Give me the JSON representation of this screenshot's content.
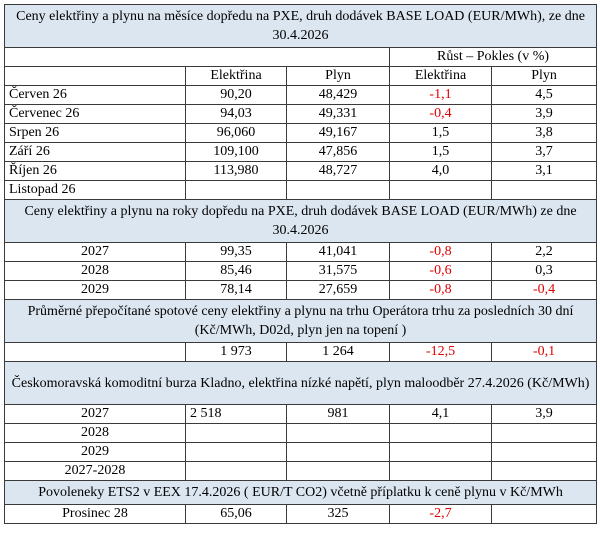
{
  "section1": {
    "title": "Ceny elektřiny a plynu na měsíce dopředu na PXE, druh dodávek BASE LOAD (EUR/MWh), ze dne 30.4.2026",
    "growth_header": "Růst – Pokles (v %)",
    "col_elektrina": "Elektřina",
    "col_plyn": "Plyn",
    "col_growth_elektrina": "Elektřina",
    "col_growth_plyn": "Plyn",
    "rows": [
      {
        "label": "Červen 26",
        "elektrina": "90,20",
        "plyn": "48,429",
        "ge": "-1,1",
        "gp": "4,5"
      },
      {
        "label": "Červenec 26",
        "elektrina": "94,03",
        "plyn": "49,331",
        "ge": "-0,4",
        "gp": "3,9"
      },
      {
        "label": "Srpen 26",
        "elektrina": "96,060",
        "plyn": "49,167",
        "ge": "1,5",
        "gp": "3,8"
      },
      {
        "label": "Září 26",
        "elektrina": "109,100",
        "plyn": "47,856",
        "ge": "1,5",
        "gp": "3,7"
      },
      {
        "label": "Říjen 26",
        "elektrina": "113,980",
        "plyn": "48,727",
        "ge": "4,0",
        "gp": "3,1"
      },
      {
        "label": "Listopad 26",
        "elektrina": "",
        "plyn": "",
        "ge": "",
        "gp": ""
      }
    ]
  },
  "section2": {
    "title": "Ceny elektřiny a plynu na roky dopředu na PXE, druh dodávek BASE LOAD (EUR/MWh) ze dne 30.4.2026",
    "rows": [
      {
        "label": "2027",
        "elektrina": "99,35",
        "plyn": "41,041",
        "ge": "-0,8",
        "gp": "2,2"
      },
      {
        "label": "2028",
        "elektrina": "85,46",
        "plyn": "31,575",
        "ge": "-0,6",
        "gp": "0,3"
      },
      {
        "label": "2029",
        "elektrina": "78,14",
        "plyn": "27,659",
        "ge": "-0,8",
        "gp": "-0,4"
      }
    ]
  },
  "section3": {
    "title": "Průměrné přepočítané spotové ceny elektřiny a plynu na trhu Operátora trhu za posledních 30 dní (Kč/MWh, D02d, plyn jen na topení )",
    "row": {
      "label": "",
      "elektrina": "1 973",
      "plyn": "1 264",
      "ge": "-12,5",
      "gp": "-0,1"
    }
  },
  "section4": {
    "title": "Českomoravská komoditní burza Kladno, elektřina nízké napětí, plyn maloodběr 27.4.2026 (Kč/MWh)",
    "rows": [
      {
        "label": "2027",
        "elektrina": "2 518",
        "plyn": "981",
        "ge": "4,1",
        "gp": "3,9"
      },
      {
        "label": "2028",
        "elektrina": "",
        "plyn": "",
        "ge": "",
        "gp": ""
      },
      {
        "label": "2029",
        "elektrina": "",
        "plyn": "",
        "ge": "",
        "gp": ""
      },
      {
        "label": "2027-2028",
        "elektrina": "",
        "plyn": "",
        "ge": "",
        "gp": ""
      }
    ]
  },
  "section5": {
    "title": "Povoleneky ETS2 v EEX 17.4.2026  ( EUR/T CO2) včetně příplatku k ceně plynu v Kč/MWh",
    "row": {
      "label": "Prosinec 28",
      "elektrina": "65,06",
      "plyn": "325",
      "ge": "-2,7",
      "gp": ""
    }
  },
  "colors": {
    "header_bg": "#dce6f1",
    "negative": "#e00000",
    "border": "#3a3a3a"
  }
}
